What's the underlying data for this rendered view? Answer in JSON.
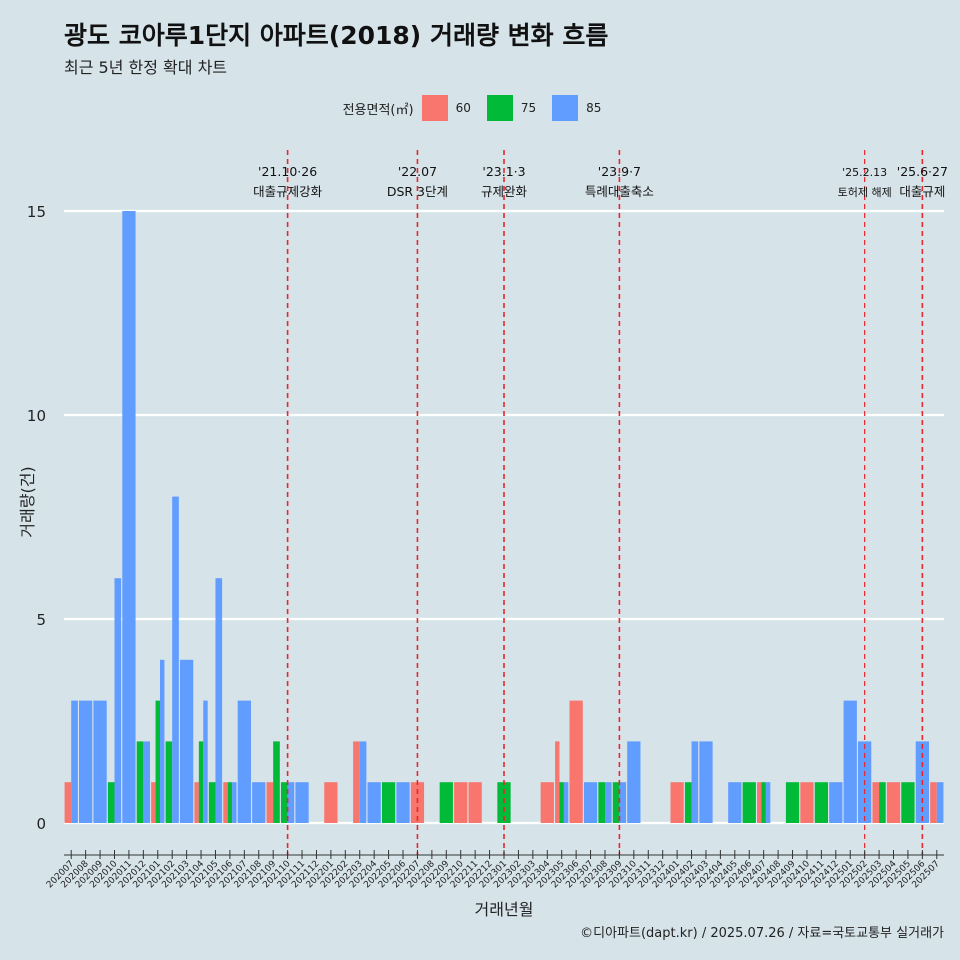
{
  "title": "광도 코아루1단지 아파트(2018) 거래량 변화 흐름",
  "subtitle": "최근 5년 한정 확대 차트",
  "caption": "©디아파트(dapt.kr) / 2025.07.26 / 자료=국토교통부 실거래가",
  "legend": {
    "title": "전용면적(㎡)",
    "items": [
      {
        "label": "60",
        "color": "#f8766d"
      },
      {
        "label": "75",
        "color": "#00ba38"
      },
      {
        "label": "85",
        "color": "#619cff"
      }
    ]
  },
  "chart_data": {
    "type": "bar",
    "xlabel": "거래년월",
    "ylabel": "거래량(건)",
    "ylim": [
      0,
      15
    ],
    "yticks": [
      0,
      5,
      10,
      15
    ],
    "grid": true,
    "legend_position": "top",
    "categories": [
      "202007",
      "202008",
      "202009",
      "202010",
      "202011",
      "202012",
      "202101",
      "202102",
      "202103",
      "202104",
      "202105",
      "202106",
      "202107",
      "202108",
      "202109",
      "202110",
      "202111",
      "202112",
      "202201",
      "202202",
      "202203",
      "202204",
      "202205",
      "202206",
      "202207",
      "202208",
      "202209",
      "202210",
      "202211",
      "202212",
      "202301",
      "202302",
      "202303",
      "202304",
      "202305",
      "202306",
      "202307",
      "202308",
      "202309",
      "202310",
      "202311",
      "202312",
      "202401",
      "202402",
      "202403",
      "202404",
      "202405",
      "202406",
      "202407",
      "202408",
      "202409",
      "202410",
      "202411",
      "202412",
      "202501",
      "202502",
      "202503",
      "202504",
      "202505",
      "202506",
      "202507"
    ],
    "series": [
      {
        "name": "60",
        "values": [
          1,
          0,
          0,
          0,
          0,
          0,
          1,
          0,
          0,
          1,
          0,
          1,
          0,
          0,
          1,
          0,
          0,
          0,
          1,
          0,
          2,
          0,
          0,
          0,
          1,
          0,
          0,
          1,
          1,
          0,
          0,
          0,
          0,
          1,
          2,
          3,
          0,
          0,
          0,
          0,
          0,
          0,
          1,
          0,
          0,
          0,
          0,
          0,
          1,
          0,
          0,
          1,
          0,
          0,
          0,
          0,
          1,
          1,
          0,
          0,
          1
        ]
      },
      {
        "name": "75",
        "values": [
          0,
          0,
          0,
          1,
          0,
          2,
          3,
          2,
          0,
          2,
          1,
          1,
          0,
          0,
          2,
          1,
          0,
          0,
          0,
          0,
          0,
          0,
          1,
          0,
          0,
          0,
          1,
          0,
          0,
          0,
          1,
          0,
          0,
          0,
          1,
          0,
          0,
          1,
          1,
          0,
          0,
          0,
          0,
          1,
          0,
          0,
          0,
          1,
          1,
          0,
          1,
          0,
          1,
          0,
          0,
          0,
          1,
          0,
          1,
          0,
          0
        ]
      },
      {
        "name": "85",
        "values": [
          3,
          3,
          3,
          6,
          15,
          2,
          4,
          8,
          4,
          3,
          6,
          1,
          3,
          1,
          0,
          1,
          1,
          0,
          0,
          0,
          2,
          1,
          0,
          1,
          0,
          0,
          0,
          0,
          0,
          0,
          0,
          0,
          0,
          0,
          1,
          0,
          1,
          1,
          1,
          2,
          0,
          0,
          0,
          2,
          2,
          0,
          1,
          0,
          1,
          0,
          0,
          0,
          0,
          1,
          3,
          2,
          0,
          0,
          0,
          2,
          1
        ]
      }
    ],
    "events": [
      {
        "date": "202110",
        "line1": "'21.10·26",
        "line2": "대출규제강화"
      },
      {
        "date": "202207",
        "line1": "'22.07",
        "line2": "DSR 3단계"
      },
      {
        "date": "202301",
        "line1": "'23.1·3",
        "line2": "규제완화"
      },
      {
        "date": "202309",
        "line1": "'23.9·7",
        "line2": "특례대출축소"
      },
      {
        "date": "202502",
        "line1": "'25.2.13",
        "line2": "토허제 해제"
      },
      {
        "date": "202506",
        "line1": "'25.6·27",
        "line2": "대출규제"
      }
    ]
  }
}
